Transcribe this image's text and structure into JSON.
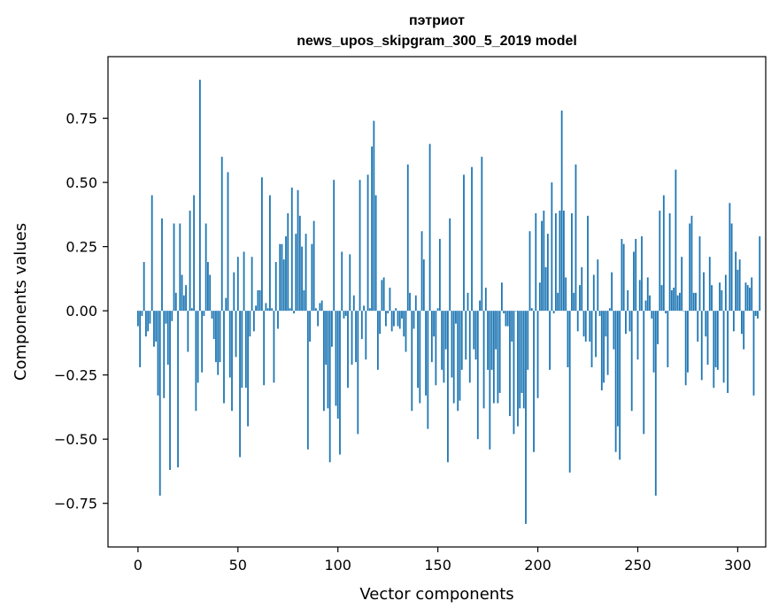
{
  "chart_data": {
    "type": "bar",
    "title_line1": "пэтриот",
    "title_line2": "news_upos_skipgram_300_5_2019 model",
    "xlabel": "Vector components",
    "ylabel": "Components values",
    "xlim": [
      -15,
      314
    ],
    "ylim": [
      -0.92,
      0.99
    ],
    "xticks": [
      0,
      50,
      100,
      150,
      200,
      250,
      300
    ],
    "xtick_labels": [
      "0",
      "50",
      "100",
      "150",
      "200",
      "250",
      "300"
    ],
    "yticks": [
      -0.75,
      -0.5,
      -0.25,
      0.0,
      0.25,
      0.5,
      0.75
    ],
    "ytick_labels": [
      "−0.75",
      "−0.50",
      "−0.25",
      "0.00",
      "0.25",
      "0.50",
      "0.75"
    ],
    "grid": false,
    "bar_color": "#1f77b4",
    "values": [
      -0.06,
      -0.22,
      -0.02,
      0.19,
      -0.1,
      -0.08,
      -0.05,
      0.45,
      -0.14,
      -0.12,
      -0.33,
      -0.72,
      0.36,
      -0.34,
      -0.05,
      -0.21,
      -0.62,
      -0.04,
      0.34,
      0.07,
      -0.61,
      0.34,
      0.14,
      0.06,
      0.1,
      -0.16,
      0.39,
      0.01,
      0.45,
      -0.39,
      -0.28,
      0.9,
      -0.24,
      -0.02,
      0.34,
      0.19,
      0.14,
      -0.03,
      -0.11,
      -0.2,
      -0.25,
      -0.2,
      0.6,
      -0.36,
      0.05,
      0.54,
      -0.26,
      -0.39,
      0.15,
      -0.18,
      0.21,
      -0.57,
      -0.3,
      0.23,
      -0.3,
      -0.45,
      -0.1,
      0.21,
      -0.08,
      0.02,
      0.08,
      0.08,
      0.52,
      -0.29,
      0.03,
      0.01,
      0.45,
      0.01,
      -0.28,
      0.19,
      -0.07,
      0.26,
      0.26,
      0.2,
      0.29,
      0.38,
      0.01,
      0.48,
      -0.01,
      0.3,
      0.47,
      0.37,
      0.25,
      0.08,
      0.3,
      -0.54,
      -0.12,
      0.26,
      0.35,
      0.01,
      -0.06,
      0.03,
      0.04,
      -0.39,
      -0.21,
      -0.38,
      -0.59,
      -0.14,
      0.51,
      -0.37,
      -0.42,
      -0.56,
      0.23,
      -0.03,
      -0.02,
      -0.3,
      0.22,
      -0.21,
      0.06,
      -0.2,
      -0.48,
      0.51,
      -0.11,
      0.02,
      -0.19,
      0.53,
      0.01,
      0.64,
      0.74,
      0.45,
      -0.23,
      -0.09,
      0.12,
      0.13,
      -0.06,
      -0.01,
      0.09,
      -0.08,
      -0.06,
      0.01,
      -0.06,
      -0.07,
      -0.03,
      -0.1,
      -0.16,
      0.57,
      0.07,
      -0.39,
      -0.07,
      0.06,
      -0.3,
      -0.36,
      0.31,
      0.2,
      -0.33,
      -0.46,
      0.65,
      -0.2,
      -0.1,
      -0.29,
      0.01,
      0.28,
      -0.23,
      -0.28,
      -0.15,
      -0.59,
      0.36,
      -0.26,
      -0.36,
      -0.05,
      -0.39,
      -0.35,
      -0.23,
      0.53,
      -0.19,
      0.07,
      -0.28,
      0.56,
      -0.15,
      -0.19,
      -0.5,
      0.04,
      0.6,
      -0.38,
      0.09,
      -0.23,
      -0.54,
      -0.23,
      -0.36,
      -0.15,
      -0.36,
      -0.32,
      0.11,
      -0.01,
      -0.06,
      -0.06,
      -0.41,
      -0.12,
      -0.48,
      0.0,
      -0.45,
      -0.38,
      -0.32,
      -0.38,
      -0.83,
      -0.23,
      0.31,
      0.01,
      -0.55,
      0.38,
      -0.34,
      0.11,
      0.35,
      0.39,
      0.17,
      0.3,
      -0.23,
      0.5,
      -0.01,
      0.38,
      0.07,
      0.39,
      0.78,
      0.39,
      0.13,
      -0.22,
      -0.63,
      0.38,
      0.07,
      0.57,
      -0.08,
      0.1,
      0.17,
      -0.1,
      -0.12,
      0.37,
      -0.12,
      -0.22,
      0.14,
      -0.18,
      0.2,
      -0.02,
      -0.31,
      -0.28,
      -0.1,
      -0.25,
      0.01,
      0.15,
      -0.15,
      -0.55,
      -0.45,
      -0.58,
      0.28,
      0.26,
      -0.09,
      0.08,
      -0.08,
      -0.39,
      0.23,
      0.28,
      -0.19,
      0.12,
      0.29,
      -0.48,
      0.04,
      0.13,
      0.06,
      -0.03,
      -0.24,
      -0.72,
      -0.13,
      0.39,
      0.1,
      0.45,
      -0.01,
      -0.22,
      0.38,
      0.08,
      0.09,
      0.55,
      0.06,
      0.07,
      0.21,
      0.0,
      -0.29,
      -0.24,
      0.34,
      0.37,
      0.07,
      0.07,
      -0.12,
      0.29,
      -0.27,
      0.15,
      -0.1,
      -0.21,
      0.21,
      0.1,
      -0.3,
      -0.22,
      -0.23,
      0.11,
      0.08,
      -0.28,
      0.14,
      -0.32,
      0.42,
      0.34,
      -0.08,
      0.23,
      0.16,
      0.2,
      -0.09,
      -0.15,
      0.11,
      0.1,
      0.09,
      0.13,
      -0.33,
      -0.02,
      -0.03,
      0.29
    ]
  }
}
